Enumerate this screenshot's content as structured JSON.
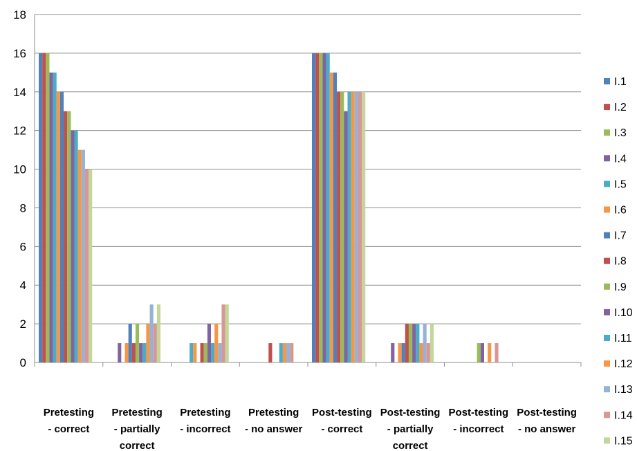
{
  "chart_data": {
    "type": "bar",
    "title": "",
    "xlabel": "",
    "ylabel": "",
    "ylim": [
      0,
      18
    ],
    "yticks": [
      "0",
      "2",
      "4",
      "6",
      "8",
      "10",
      "12",
      "14",
      "16",
      "18"
    ],
    "grid": "horizontal",
    "legend_position": "right",
    "categories": [
      [
        "Pretesting",
        "- correct"
      ],
      [
        "Pretesting",
        "- partially",
        "correct"
      ],
      [
        "Pretesting",
        "- incorrect"
      ],
      [
        "Pretesting",
        "- no answer"
      ],
      [
        "Post-testing",
        "- correct"
      ],
      [
        "Post-testing",
        "- partially",
        "correct"
      ],
      [
        "Post-testing",
        "- incorrect"
      ],
      [
        "Post-testing",
        "- no answer"
      ]
    ],
    "series": [
      {
        "name": "I.1",
        "color": "#4F81BD",
        "values": [
          16,
          0,
          0,
          0,
          16,
          0,
          0,
          0
        ]
      },
      {
        "name": "I.2",
        "color": "#C0504D",
        "values": [
          16,
          0,
          0,
          0,
          16,
          0,
          0,
          0
        ]
      },
      {
        "name": "I.3",
        "color": "#9BBB59",
        "values": [
          16,
          0,
          0,
          0,
          16,
          0,
          0,
          0
        ]
      },
      {
        "name": "I.4",
        "color": "#8064A2",
        "values": [
          15,
          1,
          0,
          0,
          16,
          1,
          0,
          0
        ]
      },
      {
        "name": "I.5",
        "color": "#4BACC6",
        "values": [
          15,
          0,
          1,
          0,
          16,
          0,
          0,
          0
        ]
      },
      {
        "name": "I.6",
        "color": "#F79646",
        "values": [
          14,
          1,
          1,
          0,
          15,
          1,
          0,
          0
        ]
      },
      {
        "name": "I.7",
        "color": "#4F81BD",
        "values": [
          14,
          2,
          0,
          0,
          15,
          1,
          0,
          0
        ]
      },
      {
        "name": "I.8",
        "color": "#C0504D",
        "values": [
          13,
          1,
          1,
          1,
          14,
          2,
          0,
          0
        ]
      },
      {
        "name": "I.9",
        "color": "#9BBB59",
        "values": [
          13,
          2,
          1,
          0,
          14,
          2,
          1,
          0
        ]
      },
      {
        "name": "I.10",
        "color": "#8064A2",
        "values": [
          12,
          1,
          2,
          0,
          13,
          2,
          1,
          0
        ]
      },
      {
        "name": "I.11",
        "color": "#4BACC6",
        "values": [
          12,
          1,
          1,
          1,
          14,
          2,
          0,
          0
        ]
      },
      {
        "name": "I.12",
        "color": "#F79646",
        "values": [
          11,
          2,
          2,
          1,
          14,
          1,
          1,
          0
        ]
      },
      {
        "name": "I.13",
        "color": "#95B3D7",
        "values": [
          11,
          3,
          1,
          1,
          14,
          2,
          0,
          0
        ]
      },
      {
        "name": "I.14",
        "color": "#D99694",
        "values": [
          10,
          2,
          3,
          1,
          14,
          1,
          1,
          0
        ]
      },
      {
        "name": "I.15",
        "color": "#C3D69B",
        "values": [
          10,
          3,
          3,
          0,
          14,
          2,
          0,
          0
        ]
      }
    ]
  }
}
